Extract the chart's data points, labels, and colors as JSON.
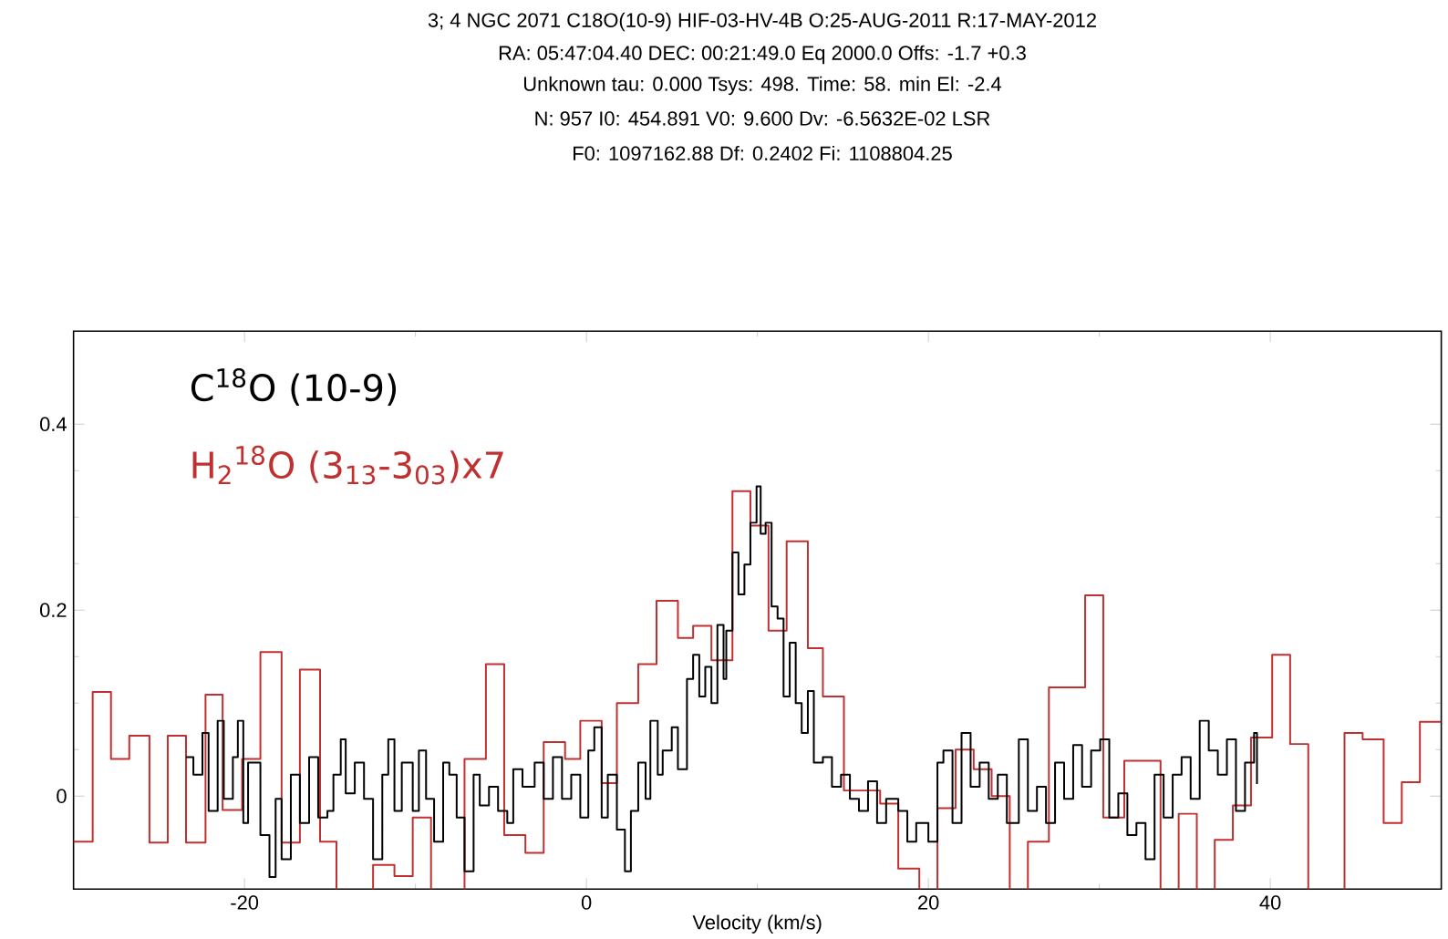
{
  "chart_data": {
    "type": "step",
    "annotations": [
      "3; 4 NGC 2071 C18O(10-9) HIF-03-HV-4B O:25-AUG-2011 R:17-MAY-2012",
      "RA: 05:47:04.40 DEC: 00:21:49.0 Eq 2000.0 Offs: -1.7 +0.3",
      "Unknown tau: 0.000 Tsys: 498. Time: 58. min El: -2.4",
      "N: 957 I0: 454.891 V0: 9.600 Dv: -6.5632E-02 LSR",
      "F0: 1097162.88 Df: 0.2402 Fi: 1108804.25"
    ],
    "xlabel": "Velocity (km/s)",
    "xlim": [
      -30,
      50
    ],
    "ylim": [
      -0.1,
      0.5
    ],
    "xticks": [
      -20,
      0,
      20,
      40
    ],
    "yticks": [
      0,
      0.2,
      0.4
    ],
    "marker": "none",
    "series": [
      {
        "name": "H$_{2}$$^{18}$O (3$_{13}$-3$_{03}$)x7",
        "color": "#c03030",
        "x": [
          -30,
          -28.88,
          -27.81,
          -26.74,
          -25.56,
          -24.49,
          -23.42,
          -22.28,
          -21.28,
          -20.14,
          -19.07,
          -17.83,
          -16.76,
          -15.58,
          -14.62,
          -12.48,
          -11.23,
          -10.16,
          -9.09,
          -7.13,
          -5.88,
          -4.81,
          -3.57,
          -2.5,
          -1.25,
          -0.36,
          0.89,
          1.78,
          3.03,
          4.1,
          5.35,
          6.24,
          7.31,
          8.54,
          9.59,
          10.65,
          11.71,
          12.95,
          13.83,
          15.06,
          17.18,
          18.24,
          19.47,
          20.53,
          21.59,
          22.65,
          23.7,
          24.76,
          25.82,
          27.05,
          29.17,
          30.23,
          31.46,
          33.58,
          34.64,
          35.7,
          36.75,
          37.81,
          38.87,
          40.11,
          41.16,
          42.22,
          44.34,
          45.4,
          46.63,
          47.69,
          48.75,
          50
        ],
        "values": [
          -0.049,
          0.112,
          0.04,
          0.065,
          -0.05,
          0.065,
          -0.05,
          0.109,
          -0.015,
          0.04,
          0.155,
          -0.05,
          0.136,
          -0.049,
          null,
          -0.074,
          -0.086,
          -0.023,
          null,
          0.04,
          0.142,
          -0.042,
          -0.061,
          0.058,
          0.04,
          0.081,
          0.014,
          0.1,
          0.142,
          0.21,
          0.17,
          0.183,
          0.146,
          0.328,
          0.291,
          0.178,
          0.274,
          0.159,
          0.107,
          0.006,
          -0.008,
          -0.078,
          null,
          -0.013,
          0.05,
          0.029,
          0,
          null,
          -0.049,
          0.117,
          0.216,
          -0.023,
          0.038,
          null,
          -0.019,
          null,
          -0.047,
          -0.01,
          0.063,
          0.152,
          0.056,
          null,
          0.068,
          0.061,
          -0.029,
          0.015,
          0.08,
          0.08
        ]
      },
      {
        "name": "C$^{18}$O (10-9)",
        "color": "#000000",
        "x": [
          -23.42,
          -22.99,
          -22.46,
          -22.1,
          -21.57,
          -21.21,
          -20.68,
          -20.39,
          -20.07,
          -19.79,
          -19.07,
          -18.54,
          -18.18,
          -17.83,
          -17.29,
          -16.76,
          -16.22,
          -15.69,
          -15.15,
          -14.8,
          -14.37,
          -14.08,
          -13.55,
          -13.01,
          -12.48,
          -11.94,
          -11.59,
          -11.23,
          -10.8,
          -10.16,
          -9.8,
          -9.38,
          -8.91,
          -8.38,
          -8.02,
          -7.59,
          -7.13,
          -6.6,
          -6.24,
          -5.7,
          -5.17,
          -4.63,
          -4.28,
          -3.74,
          -3.03,
          -2.5,
          -1.96,
          -1.43,
          -0.89,
          -0.36,
          0.11,
          0.46,
          0.89,
          1.25,
          1.78,
          2.25,
          2.6,
          3.03,
          3.46,
          3.74,
          4.17,
          4.46,
          4.99,
          5.35,
          5.88,
          6.24,
          6.6,
          6.95,
          7.31,
          7.66,
          8.02,
          8.18,
          8.54,
          8.89,
          9.24,
          9.59,
          9.95,
          10.19,
          10.48,
          10.83,
          11.18,
          11.53,
          11.89,
          12.24,
          12.59,
          12.95,
          13.3,
          13.83,
          14.36,
          14.89,
          15.41,
          15.94,
          16.47,
          17,
          17.53,
          18.24,
          18.77,
          19.29,
          20,
          20.53,
          20.88,
          21.41,
          21.94,
          22.47,
          23,
          23.53,
          24.06,
          24.59,
          25.29,
          25.82,
          26.35,
          26.88,
          27.41,
          27.94,
          28.47,
          28.99,
          29.52,
          30.05,
          30.58,
          31.11,
          31.64,
          32.17,
          32.7,
          33.23,
          33.76,
          34.29,
          34.81,
          35.34,
          35.87,
          36.4,
          36.93,
          37.46,
          37.99,
          38.52,
          39.05,
          39.22
        ],
        "values": [
          0.042,
          0.023,
          0.068,
          -0.016,
          0.081,
          -0.003,
          0.042,
          0.081,
          -0.029,
          0.036,
          -0.042,
          -0.087,
          -0.003,
          -0.068,
          0.023,
          -0.029,
          0.042,
          -0.023,
          -0.016,
          0.023,
          0.061,
          0.003,
          0.036,
          -0.003,
          -0.068,
          0.023,
          0.061,
          -0.016,
          0.036,
          -0.016,
          0.049,
          -0.003,
          -0.049,
          0.036,
          0.023,
          -0.023,
          -0.081,
          0.023,
          -0.01,
          0.01,
          -0.016,
          -0.029,
          0.029,
          0.01,
          0.036,
          -0.003,
          0.042,
          -0.003,
          0.023,
          -0.023,
          0.049,
          0.074,
          -0.023,
          0.023,
          -0.036,
          -0.081,
          -0.016,
          0.036,
          -0.003,
          0.081,
          0.023,
          0.049,
          0.074,
          0.029,
          0.126,
          0.152,
          0.107,
          0.139,
          0.1,
          0.184,
          0.126,
          0.178,
          0.262,
          0.217,
          0.249,
          0.294,
          0.333,
          0.282,
          0.294,
          0.204,
          0.191,
          0.107,
          0.165,
          0.1,
          0.068,
          0.113,
          0.036,
          0.042,
          0.01,
          0.023,
          -0.003,
          -0.016,
          0.016,
          -0.029,
          -0.003,
          -0.016,
          -0.049,
          -0.029,
          -0.049,
          0.036,
          0.049,
          -0.029,
          0.068,
          0.01,
          0.036,
          -0.003,
          0.023,
          -0.029,
          0.061,
          -0.016,
          0.01,
          -0.029,
          0.036,
          -0.003,
          0.055,
          0.01,
          0.049,
          0.061,
          -0.023,
          0.003,
          -0.042,
          -0.029,
          -0.068,
          0.023,
          -0.023,
          0.023,
          0.042,
          -0.003,
          0.081,
          0.049,
          0.023,
          0.061,
          -0.016,
          0.036,
          0.068,
          0.013
        ]
      }
    ]
  }
}
